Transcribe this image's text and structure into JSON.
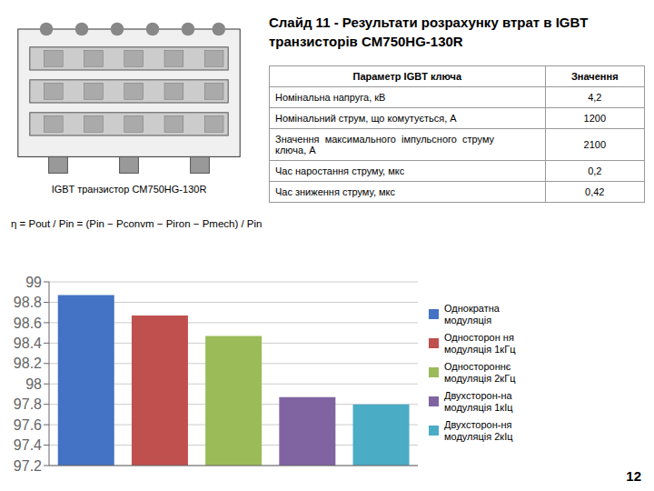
{
  "chart_data": {
    "type": "bar",
    "title": "Слайд 11 - Результати розрахунку втрат в IGBT\nтранзисторів CM750HG-130R",
    "subtitle": "IGBT транзистор CM750HG-130R",
    "categories": [
      "Однократна\nмодуляція",
      "Односторон ня\nмодуляція 1кГц",
      "Одностороннє\nмодуляція 2кГц",
      "Двухсторон-на\nмодуляція 1кІц",
      "Двухсторон-ня\nмодуляція 2кІц"
    ],
    "values": [
      98.87,
      98.67,
      98.47,
      97.87,
      97.8
    ],
    "colors": [
      "#4472C4",
      "#C0504D",
      "#9BBB59",
      "#8064A2",
      "#4BACC6"
    ],
    "ylim": [
      97.2,
      99.0
    ],
    "yticks": [
      97.2,
      97.4,
      97.6,
      97.8,
      98.0,
      98.2,
      98.4,
      98.6,
      98.8,
      99.0
    ],
    "grid": true,
    "legend": "right",
    "tick_labels": "y",
    "annotations": [
      "η = Pout / Pin = (Pin − Pconvm − Piron − Pmech) / Pin",
      "Параметр IGBT ключа",
      "Значення",
      "Номінальна напруга, кВ",
      "4,2",
      "Номінальний струм, що комутується, А",
      "1200",
      "Значення  максимального  імпульсного  струму\nключа, А",
      "2100",
      "Час наростання струму, мкс",
      "0,2",
      "Час зниження струму, мкс",
      "0,42",
      "12"
    ]
  }
}
